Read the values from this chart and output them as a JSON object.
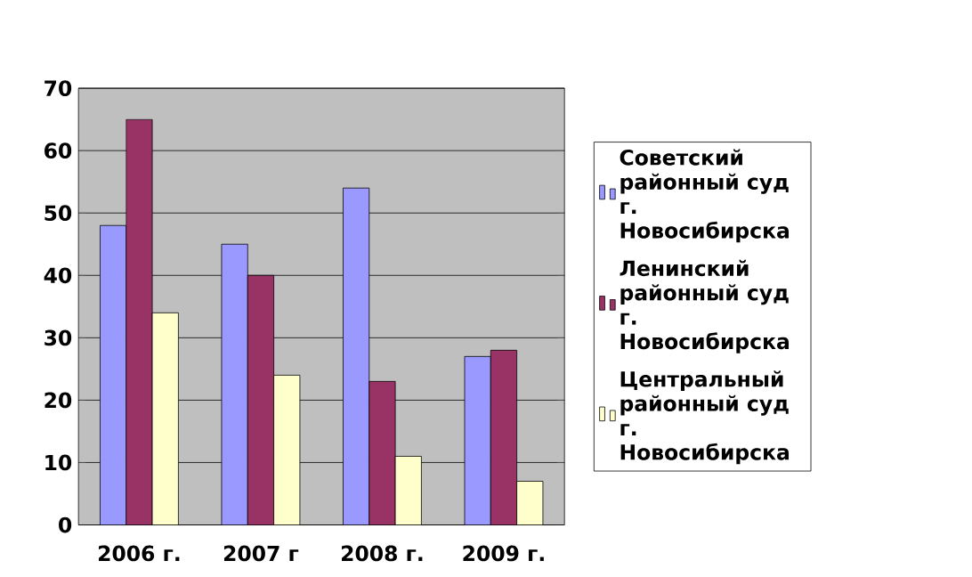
{
  "chart_data": {
    "type": "bar",
    "categories": [
      "2006 г.",
      "2007 г",
      "2008 г.",
      "2009 г."
    ],
    "series": [
      {
        "name": "Советский районный суд г. Новосибирска",
        "color": "#9999ff",
        "values": [
          48,
          45,
          54,
          27
        ]
      },
      {
        "name": "Ленинский районный суд г. Новосибирска",
        "color": "#993366",
        "values": [
          65,
          40,
          23,
          28
        ]
      },
      {
        "name": "Центральный районный суд г. Новосибирска",
        "color": "#ffffcc",
        "values": [
          34,
          24,
          11,
          7
        ]
      }
    ],
    "ylim": [
      0,
      70
    ],
    "yticks": [
      0,
      10,
      20,
      30,
      40,
      50,
      60,
      70
    ],
    "grid": "y",
    "legend": "right"
  }
}
